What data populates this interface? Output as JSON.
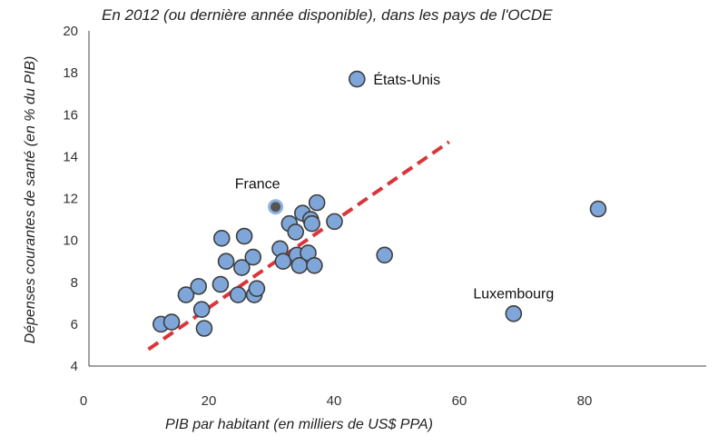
{
  "chart_data": {
    "type": "scatter",
    "subtitle": "En 2012 (ou dernière année disponible), dans les pays de l'OCDE",
    "xlabel": "PIB par habitant (en milliers de US$ PPA)",
    "ylabel": "Dépenses courantes de santé (en % du PIB)",
    "xlim": [
      0,
      100
    ],
    "ylim": [
      4,
      20
    ],
    "xticks": [
      "0",
      "20",
      "40",
      "60",
      "80"
    ],
    "xtick_values": [
      0,
      20,
      40,
      60,
      80
    ],
    "yticks": [
      "4",
      "6",
      "8",
      "10",
      "12",
      "14",
      "16",
      "18",
      "20"
    ],
    "ytick_values": [
      4,
      6,
      8,
      10,
      12,
      14,
      16,
      18,
      20
    ],
    "grid": false,
    "colors": {
      "point_fill": "#7fa6d8",
      "point_edge": "#3e3e3e",
      "highlight_fill": "#555555",
      "highlight_edge": "#8fb3df",
      "trend": "#d9363b"
    },
    "trendline": {
      "x": [
        9.5,
        57.5
      ],
      "y": [
        4.8,
        14.7
      ]
    },
    "points": [
      {
        "x": 11.5,
        "y": 6.0
      },
      {
        "x": 13.2,
        "y": 6.1
      },
      {
        "x": 15.5,
        "y": 7.4
      },
      {
        "x": 17.5,
        "y": 7.8
      },
      {
        "x": 18.0,
        "y": 6.7
      },
      {
        "x": 18.4,
        "y": 5.8
      },
      {
        "x": 21.0,
        "y": 7.9
      },
      {
        "x": 21.2,
        "y": 10.1
      },
      {
        "x": 21.9,
        "y": 9.0
      },
      {
        "x": 23.8,
        "y": 7.4
      },
      {
        "x": 24.4,
        "y": 8.7
      },
      {
        "x": 24.8,
        "y": 10.2
      },
      {
        "x": 26.2,
        "y": 9.2
      },
      {
        "x": 26.4,
        "y": 7.4
      },
      {
        "x": 26.8,
        "y": 7.7
      },
      {
        "x": 30.5,
        "y": 9.6
      },
      {
        "x": 31.0,
        "y": 9.0
      },
      {
        "x": 32.0,
        "y": 10.8
      },
      {
        "x": 33.0,
        "y": 10.4
      },
      {
        "x": 33.2,
        "y": 9.3
      },
      {
        "x": 33.6,
        "y": 8.8
      },
      {
        "x": 34.1,
        "y": 11.3
      },
      {
        "x": 35.0,
        "y": 9.4
      },
      {
        "x": 35.4,
        "y": 11.0
      },
      {
        "x": 35.6,
        "y": 10.8
      },
      {
        "x": 36.0,
        "y": 8.8
      },
      {
        "x": 36.4,
        "y": 11.8
      },
      {
        "x": 39.2,
        "y": 10.9
      },
      {
        "x": 47.2,
        "y": 9.3
      },
      {
        "x": 81.3,
        "y": 11.5
      },
      {
        "x": 42.8,
        "y": 17.7,
        "label": "États-Unis"
      },
      {
        "x": 29.8,
        "y": 11.6,
        "label": "France",
        "highlight": true
      },
      {
        "x": 67.8,
        "y": 6.5,
        "label": "Luxembourg"
      }
    ]
  }
}
